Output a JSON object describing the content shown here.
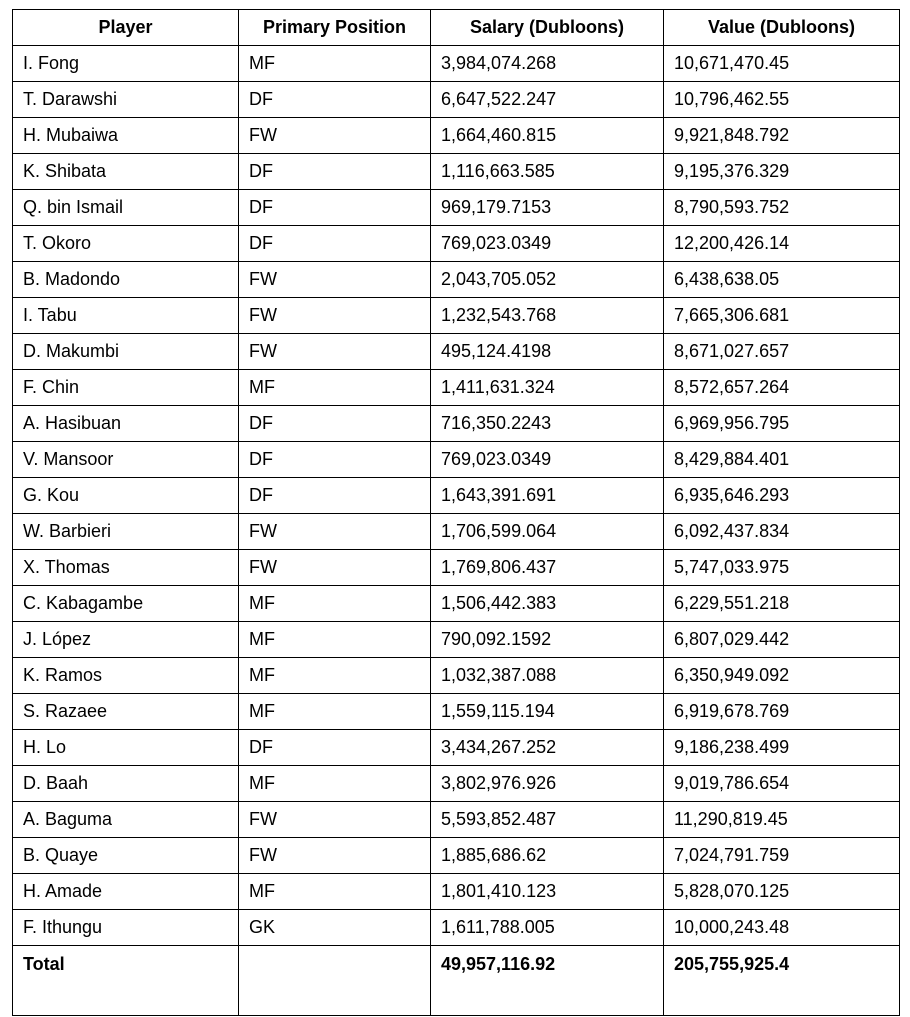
{
  "table": {
    "headers": [
      "Player",
      "Primary Position",
      "Salary (Dubloons)",
      "Value (Dubloons)"
    ],
    "rows": [
      [
        "I. Fong",
        "MF",
        "3,984,074.268",
        "10,671,470.45"
      ],
      [
        "T. Darawshi",
        "DF",
        "6,647,522.247",
        "10,796,462.55"
      ],
      [
        "H. Mubaiwa",
        "FW",
        "1,664,460.815",
        "9,921,848.792"
      ],
      [
        "K. Shibata",
        "DF",
        "1,116,663.585",
        "9,195,376.329"
      ],
      [
        "Q. bin Ismail",
        "DF",
        "969,179.7153",
        "8,790,593.752"
      ],
      [
        "T. Okoro",
        "DF",
        "769,023.0349",
        "12,200,426.14"
      ],
      [
        "B. Madondo",
        "FW",
        "2,043,705.052",
        "6,438,638.05"
      ],
      [
        "I. Tabu",
        "FW",
        "1,232,543.768",
        "7,665,306.681"
      ],
      [
        "D. Makumbi",
        "FW",
        "495,124.4198",
        "8,671,027.657"
      ],
      [
        "F. Chin",
        "MF",
        "1,411,631.324",
        "8,572,657.264"
      ],
      [
        "A. Hasibuan",
        "DF",
        "716,350.2243",
        "6,969,956.795"
      ],
      [
        "V. Mansoor",
        "DF",
        "769,023.0349",
        "8,429,884.401"
      ],
      [
        "G. Kou",
        "DF",
        "1,643,391.691",
        "6,935,646.293"
      ],
      [
        "W. Barbieri",
        "FW",
        "1,706,599.064",
        "6,092,437.834"
      ],
      [
        "X. Thomas",
        "FW",
        "1,769,806.437",
        "5,747,033.975"
      ],
      [
        "C. Kabagambe",
        "MF",
        "1,506,442.383",
        "6,229,551.218"
      ],
      [
        "J. López",
        "MF",
        "790,092.1592",
        "6,807,029.442"
      ],
      [
        "K. Ramos",
        "MF",
        "1,032,387.088",
        "6,350,949.092"
      ],
      [
        "S. Razaee",
        "MF",
        "1,559,115.194",
        "6,919,678.769"
      ],
      [
        "H. Lo",
        "DF",
        "3,434,267.252",
        "9,186,238.499"
      ],
      [
        "D. Baah",
        "MF",
        "3,802,976.926",
        "9,019,786.654"
      ],
      [
        "A. Baguma",
        "FW",
        "5,593,852.487",
        "11,290,819.45"
      ],
      [
        "B. Quaye",
        "FW",
        "1,885,686.62",
        "7,024,791.759"
      ],
      [
        "H. Amade",
        "MF",
        "1,801,410.123",
        "5,828,070.125"
      ],
      [
        "F. Ithungu",
        "GK",
        "1,611,788.005",
        "10,000,243.48"
      ]
    ],
    "total": [
      "Total",
      "",
      "49,957,116.92",
      "205,755,925.4"
    ]
  }
}
